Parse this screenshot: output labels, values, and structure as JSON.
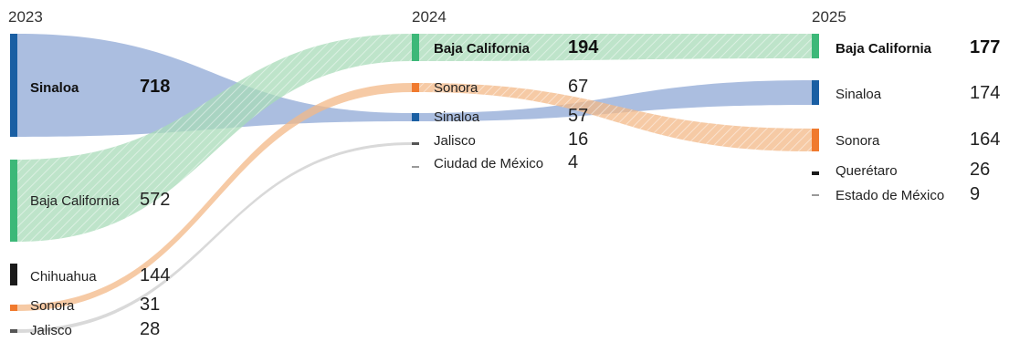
{
  "chart_data": {
    "type": "sankey",
    "title": "",
    "columns": [
      {
        "year": "2023",
        "nodes": [
          {
            "label": "Sinaloa",
            "value": 718,
            "bold": true,
            "color": "#1a5fa3"
          },
          {
            "label": "Baja California",
            "value": 572,
            "bold": false,
            "color": "#3cb878"
          },
          {
            "label": "Chihuahua",
            "value": 144,
            "bold": false,
            "color": "#1a1a1a"
          },
          {
            "label": "Sonora",
            "value": 31,
            "bold": false,
            "color": "#f07a2e"
          },
          {
            "label": "Jalisco",
            "value": 28,
            "bold": false,
            "color": "#555555"
          }
        ]
      },
      {
        "year": "2024",
        "nodes": [
          {
            "label": "Baja California",
            "value": 194,
            "bold": true,
            "color": "#3cb878"
          },
          {
            "label": "Sonora",
            "value": 67,
            "bold": false,
            "color": "#f07a2e"
          },
          {
            "label": "Sinaloa",
            "value": 57,
            "bold": false,
            "color": "#1a5fa3"
          },
          {
            "label": "Jalisco",
            "value": 16,
            "bold": false,
            "color": "#555555"
          },
          {
            "label": "Ciudad de México",
            "value": 4,
            "bold": false,
            "color": "#999999"
          }
        ]
      },
      {
        "year": "2025",
        "nodes": [
          {
            "label": "Baja California",
            "value": 177,
            "bold": true,
            "color": "#3cb878"
          },
          {
            "label": "Sinaloa",
            "value": 174,
            "bold": false,
            "color": "#1a5fa3"
          },
          {
            "label": "Sonora",
            "value": 164,
            "bold": false,
            "color": "#f07a2e"
          },
          {
            "label": "Querétaro",
            "value": 26,
            "bold": false,
            "color": "#1a1a1a"
          },
          {
            "label": "Estado de México",
            "value": 9,
            "bold": false,
            "color": "#999999"
          }
        ]
      }
    ],
    "flows": [
      {
        "from": [
          0,
          0
        ],
        "to": [
          1,
          2
        ],
        "color": "#8fa8d6",
        "pattern": "plain"
      },
      {
        "from": [
          0,
          1
        ],
        "to": [
          1,
          0
        ],
        "color": "#a8dbb8",
        "pattern": "hatch"
      },
      {
        "from": [
          0,
          3
        ],
        "to": [
          1,
          1
        ],
        "color": "#f3b887",
        "pattern": "plain"
      },
      {
        "from": [
          0,
          4
        ],
        "to": [
          1,
          3
        ],
        "color": "#cccccc",
        "pattern": "plain"
      },
      {
        "from": [
          1,
          0
        ],
        "to": [
          2,
          0
        ],
        "color": "#a8dbb8",
        "pattern": "hatch"
      },
      {
        "from": [
          1,
          2
        ],
        "to": [
          2,
          1
        ],
        "color": "#8fa8d6",
        "pattern": "plain"
      },
      {
        "from": [
          1,
          1
        ],
        "to": [
          2,
          2
        ],
        "color": "#f3b887",
        "pattern": "hatch"
      }
    ]
  }
}
